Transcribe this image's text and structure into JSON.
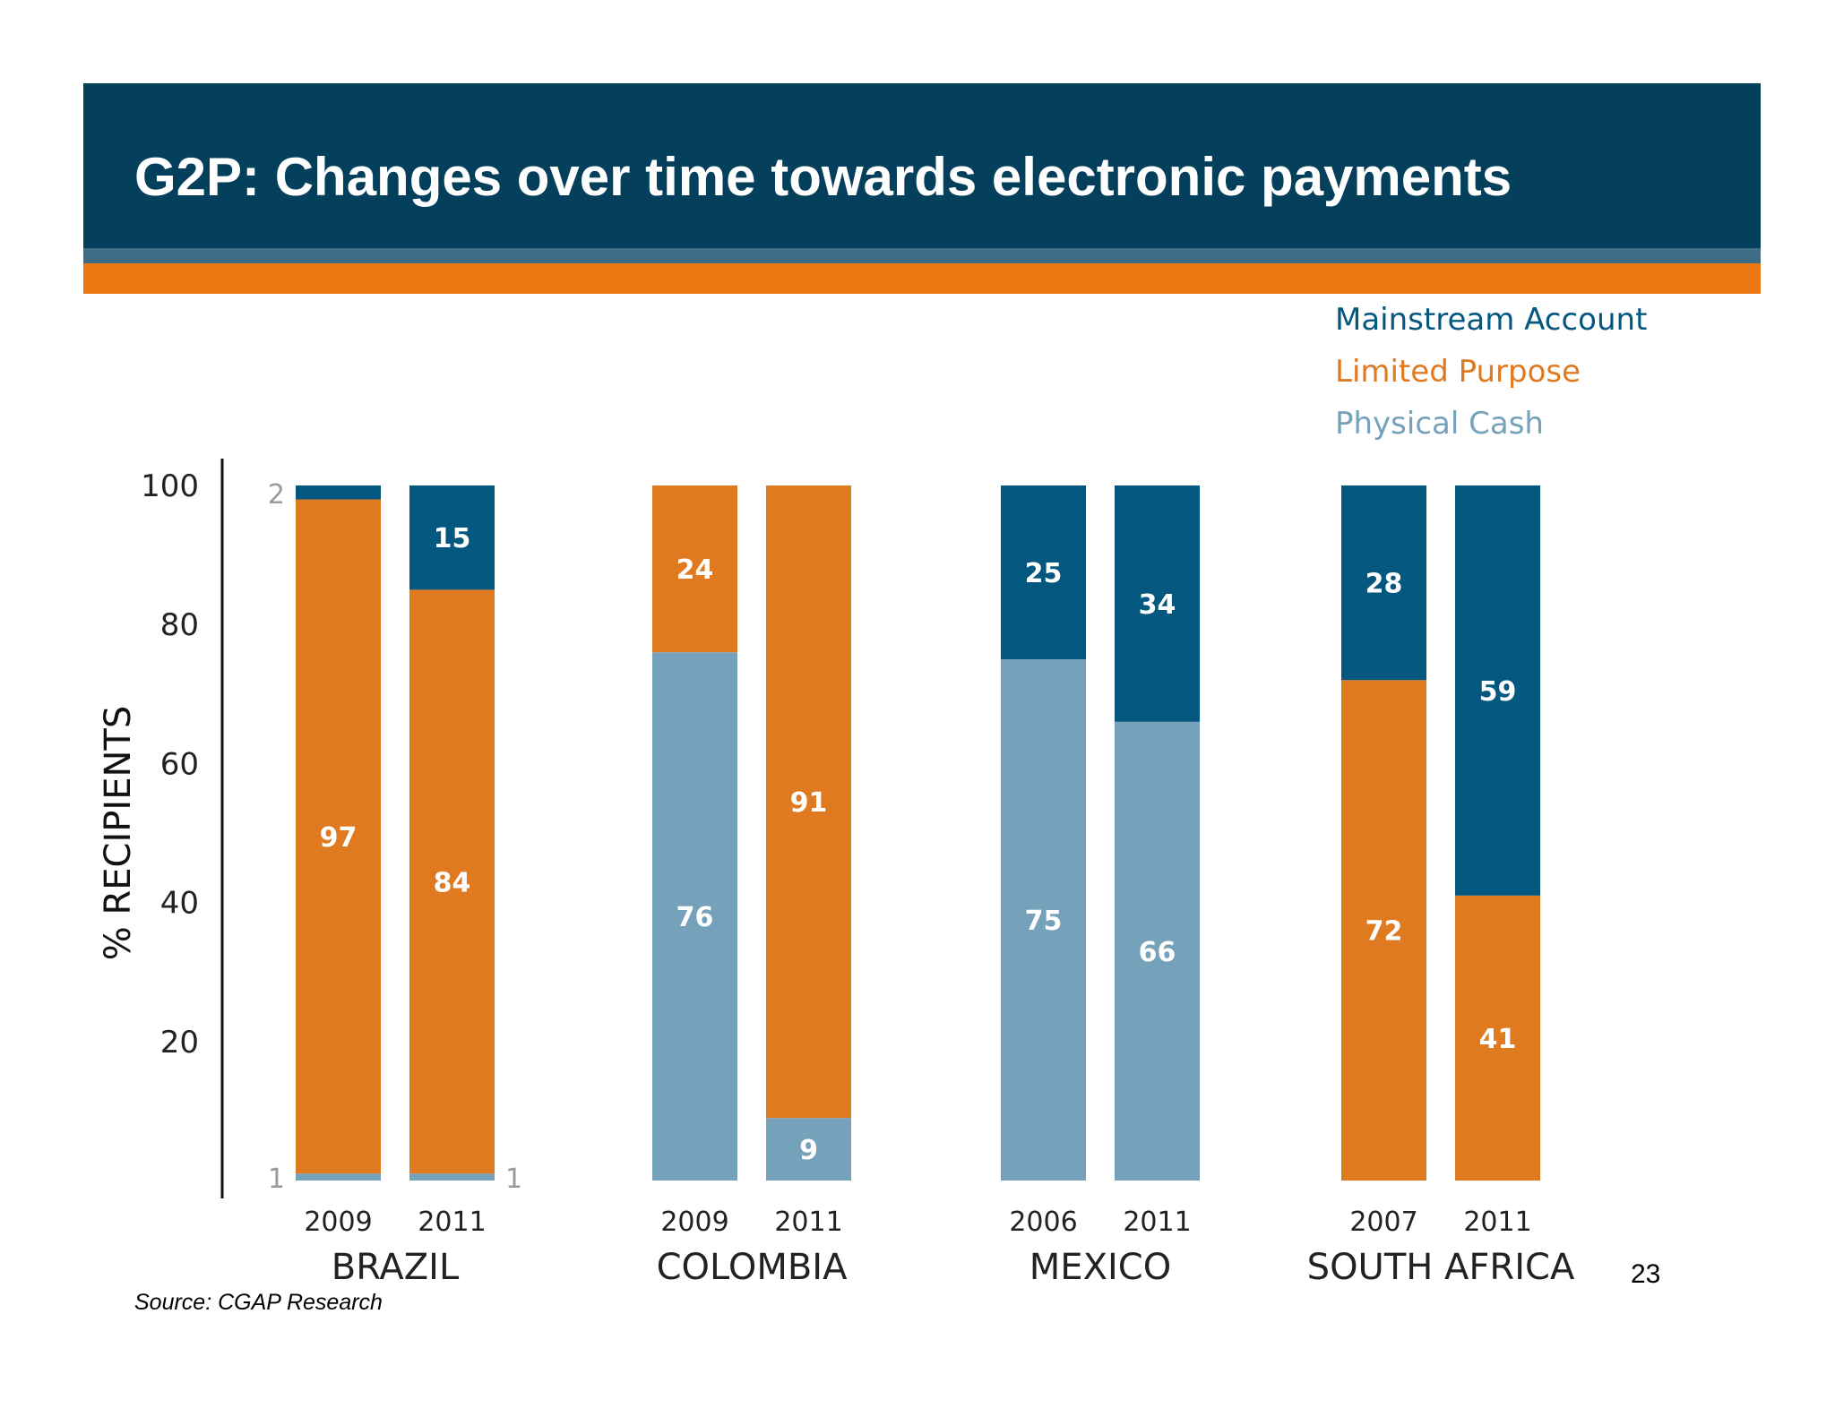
{
  "slide": {
    "title": "G2P: Changes over time towards electronic payments",
    "source": "Source: CGAP Research",
    "page_number": "23"
  },
  "colors": {
    "mainstream": "#04587f",
    "limited": "#df7a20",
    "cash": "#76a1ba",
    "header": "#043f5c",
    "accent": "#ea7711"
  },
  "chart_data": {
    "type": "bar",
    "stacked": true,
    "ylabel": "% RECIPIENTS",
    "ylim": [
      0,
      100
    ],
    "yticks": [
      20,
      40,
      60,
      80,
      100
    ],
    "legend": [
      "Mainstream Account",
      "Limited Purpose",
      "Physical Cash"
    ],
    "legend_position": "top-right",
    "groups": [
      {
        "country": "BRAZIL",
        "bars": [
          {
            "year": "2009",
            "cash": 1,
            "limited": 97,
            "mainstream": 2,
            "labels": {
              "cash": "1",
              "limited": "97",
              "mainstream": "2"
            }
          },
          {
            "year": "2011",
            "cash": 1,
            "limited": 84,
            "mainstream": 15,
            "labels": {
              "cash": "1",
              "limited": "84",
              "mainstream": "15"
            }
          }
        ]
      },
      {
        "country": "COLOMBIA",
        "bars": [
          {
            "year": "2009",
            "cash": 76,
            "limited": 24,
            "mainstream": 0,
            "labels": {
              "cash": "76",
              "limited": "24"
            }
          },
          {
            "year": "2011",
            "cash": 9,
            "limited": 91,
            "mainstream": 0,
            "labels": {
              "cash": "9",
              "limited": "91"
            }
          }
        ]
      },
      {
        "country": "MEXICO",
        "bars": [
          {
            "year": "2006",
            "cash": 75,
            "limited": 0,
            "mainstream": 25,
            "labels": {
              "cash": "75",
              "mainstream": "25"
            }
          },
          {
            "year": "2011",
            "cash": 66,
            "limited": 0,
            "mainstream": 34,
            "labels": {
              "cash": "66",
              "mainstream": "34"
            }
          }
        ]
      },
      {
        "country": "SOUTH AFRICA",
        "bars": [
          {
            "year": "2007",
            "cash": 0,
            "limited": 72,
            "mainstream": 28,
            "labels": {
              "limited": "72",
              "mainstream": "28"
            }
          },
          {
            "year": "2011",
            "cash": 0,
            "limited": 41,
            "mainstream": 59,
            "labels": {
              "limited": "41",
              "mainstream": "59"
            }
          }
        ]
      }
    ]
  }
}
